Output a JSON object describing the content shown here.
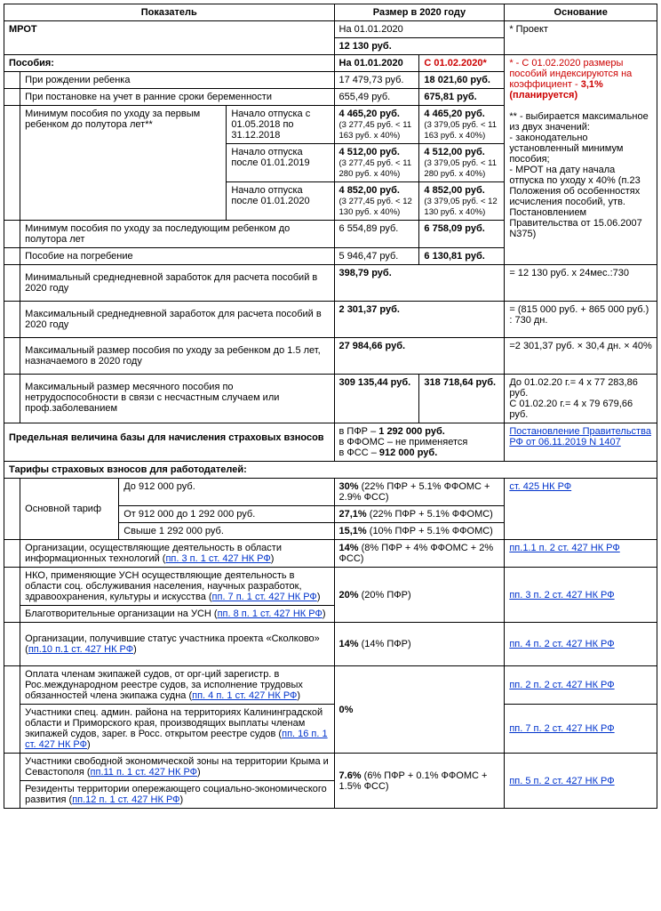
{
  "hdr": {
    "c1": "Показатель",
    "c2": "Размер в 2020 году",
    "c3": "Основание"
  },
  "mrot": {
    "title": "МРОТ",
    "date": "На 01.01.2020",
    "val": "12 130 руб.",
    "basis": "* Проект"
  },
  "pos": {
    "title": "Пособия:",
    "d1": "На 01.01.2020",
    "d2": "С 01.02.2020*"
  },
  "birth": {
    "t": "При рождении ребенка",
    "v1": "17 479,73 руб.",
    "v2": "18 021,60 руб."
  },
  "reg": {
    "t": "При постановке на учет в ранние сроки беременности",
    "v1": "655,49 руб.",
    "v2": "675,81 руб."
  },
  "min1t": "Минимум пособия по уходу за первым ребенком до полутора лет**",
  "min1a": {
    "p": "Начало отпуска с 01.05.2018 по 31.12.2018",
    "v1": "4 465,20 руб.",
    "s1": "(3 277,45 руб. < 11 163 руб. х 40%)",
    "v2": "4 465,20 руб.",
    "s2": "(3 379,05 руб. < 11 163 руб. х 40%)"
  },
  "min1b": {
    "p": "Начало отпуска после 01.01.2019",
    "v1": "4 512,00 руб.",
    "s1": "(3 277,45 руб. < 11 280 руб. х 40%)",
    "v2": "4 512,00 руб.",
    "s2": "(3 379,05 руб. < 11 280 руб. х 40%)"
  },
  "min1c": {
    "p": "Начало отпуска после 01.01.2020",
    "v1": "4 852,00 руб.",
    "s1": "(3 277,45 руб. < 12 130 руб. х 40%)",
    "v2": "4 852,00 руб.",
    "s2": "(3 379,05 руб. < 12 130 руб. х 40%)"
  },
  "min2": {
    "t": "Минимум пособия по уходу за последующим ребенком до полутора лет",
    "v1": "6 554,89 руб.",
    "v2": "6 758,09 руб."
  },
  "burial": {
    "t": "Пособие на погребение",
    "v1": "5 946,47 руб.",
    "v2": "6 130,81 руб."
  },
  "basis1a": "* - С 01.02.2020 размеры пособий индексируются на коэффициент - ",
  "basis1b": "3,1%",
  "basis1c": " (планируется)",
  "basis2": "** - выбирается максимальное из двух значений:\n- законодательно установленный минимум пособия;\n- МРОТ на дату начала отпуска по уходу х 40% (п.23 Положения об особенностях исчисления пособий, утв. Постановлением Правительства от 15.06.2007 N375)",
  "minavg": {
    "t": "Минимальный среднедневной заработок для расчета пособий в 2020 году",
    "v": "398,79 руб.",
    "b": "= 12 130 руб. х 24мес.:730"
  },
  "maxavg": {
    "t": "Максимальный среднедневной заработок для расчета пособий в 2020 году",
    "v": "2 301,37 руб.",
    "b": "= (815 000 руб. + 865 000 руб.) : 730 дн."
  },
  "maxch": {
    "t": "Максимальный размер пособия по уходу за ребенком до 1.5 лет, назначаемого в 2020 году",
    "v": "27 984,66 руб.",
    "b": "=2 301,37 руб. × 30,4 дн. × 40%"
  },
  "maxmon": {
    "t": "Максимальный размер месячного пособия по нетрудоспособности в связи с несчастным случаем или проф.заболеванием",
    "v1": "309 135,44 руб.",
    "v2": "318 718,64 руб.",
    "b": "До 01.02.20 г.= 4 х 77 283,86 руб.\nС 01.02.20 г.= 4 х 79 679,66 руб."
  },
  "base": {
    "t": "Предельная величина базы для начисления страховых взносов",
    "v": "в ПФР – <b>1 292 000 руб.</b><br>в ФФОМС – не применяется<br>в ФСС – <b>912 000 руб.</b>",
    "link": "Постановление Правительства РФ от 06.11.2019 N 1407"
  },
  "tar": {
    "title": "Тарифы страховых взносов для работодателей:"
  },
  "std": {
    "t": "Основной тариф",
    "l": "ст. 425 НК РФ",
    "r1": {
      "p": "До 912 000 руб.",
      "v": "30%",
      "d": " (22% ПФР + 5.1% ФФОМС + 2.9% ФСС)"
    },
    "r2": {
      "p": "От 912 000 до 1 292 000 руб.",
      "v": "27,1%",
      "d": " (22% ПФР + 5.1% ФФОМС)"
    },
    "r3": {
      "p": "Свыше 1 292 000 руб.",
      "v": "15,1%",
      "d": " (10% ПФР + 5.1% ФФОМС)"
    }
  },
  "it": {
    "t": "Организации, осуществляющие деятельность в области информационных технологий (",
    "lin": "пп. 3 п. 1 ст. 427 НК РФ",
    "te": ")",
    "v": "14%",
    "d": " (8% ПФР + 4% ФФОМС + 2% ФСС)",
    "l": "пп.1.1 п. 2 ст. 427 НК РФ"
  },
  "nko": {
    "t1": "НКО, применяющие УСН осуществляющие деятельность в области соц. обслуживания населения, научных разработок, здравоохранения, культуры и искусства (",
    "l1": "пп. 7 п. 1 ст. 427 НК РФ",
    "t2": "Благотворительные организации на УСН (",
    "l2": "пп. 8 п. 1 ст. 427 НК РФ",
    "v": "20%",
    "d": " (20% ПФР)",
    "l": "пп. 3 п. 2 ст. 427 НК РФ"
  },
  "sk": {
    "t": " Организации, получившие статус участника проекта «Сколково» (",
    "lin": "пп.10 п.1 ст. 427 НК РФ",
    "v": "14%",
    "d": " (14% ПФР)",
    "l": "пп. 4 п. 2 ст. 427 НК РФ"
  },
  "ship": {
    "t": "Оплата членам экипажей судов, от орг-ций зарегистр. в Рос.международном реестре судов, за исполнение трудовых обязанностей члена экипажа судна (",
    "lin": "пп. 4 п. 1 ст. 427 НК РФ",
    "l": "пп. 2 п. 2 ст. 427 НК РФ"
  },
  "kal": {
    "t": "Участники спец. админ. района на территориях Калининградской области и Приморского края, производящих выплаты членам экипажей судов, зарег. в Росс. открытом реестре судов (",
    "lin": "пп. 16 п. 1 ст. 427 НК РФ",
    "l": "пп. 7 п. 2 ст. 427 НК РФ"
  },
  "zero": {
    "v": "0%"
  },
  "crimea": {
    "t": "Участники свободной экономической зоны на территории Крыма и Севастополя (",
    "lin": "пп.11 п. 1 ст. 427 НК РФ",
    "l": "пп. 5 п. 2 ст. 427 НК РФ"
  },
  "res": {
    "t": "Резиденты территории опережающего социально-экономического развития (",
    "lin": "пп.12 п. 1 ст. 427 НК РФ"
  },
  "p76": {
    "v": "7.6%",
    "d": " (6% ПФР + 0.1% ФФОМС + 1.5% ФСС)"
  }
}
